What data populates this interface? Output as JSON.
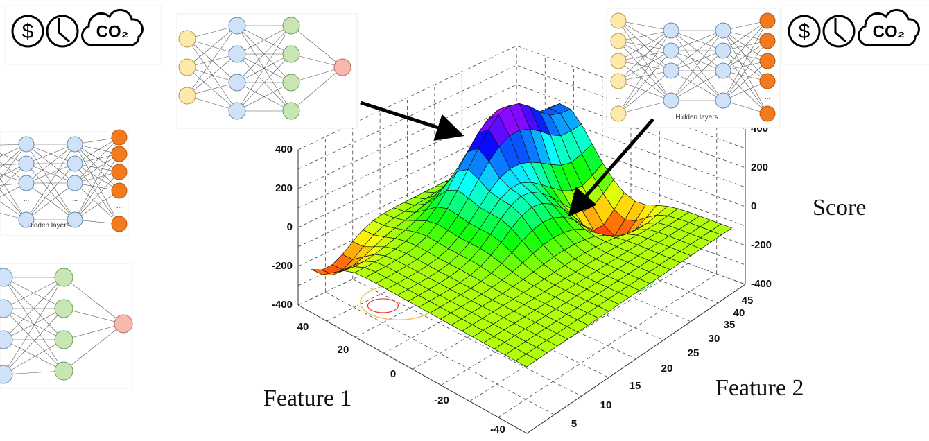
{
  "icons": [
    {
      "currency": "$",
      "gas": "CO₂"
    },
    {
      "currency": "$",
      "gas": "CO₂"
    }
  ],
  "networks": [
    {
      "caption": "Hidden layers",
      "ellipsis": "..."
    },
    {
      "caption": "Hidden layers",
      "ellipsis": "..."
    }
  ],
  "plot": {
    "z_ticks_left": [
      "400",
      "200",
      "0",
      "-200",
      "-400"
    ],
    "z_ticks_right": [
      "400",
      "200",
      "0",
      "-200",
      "-400"
    ],
    "feature1_ticks": [
      "40",
      "20",
      "0",
      "-20",
      "-40"
    ],
    "feature2_ticks": [
      "5",
      "10",
      "15",
      "20",
      "25",
      "30",
      "35",
      "40",
      "45"
    ],
    "feature1_label": "Feature 1",
    "feature2_label": "Feature 2",
    "score_label": "Score"
  }
}
